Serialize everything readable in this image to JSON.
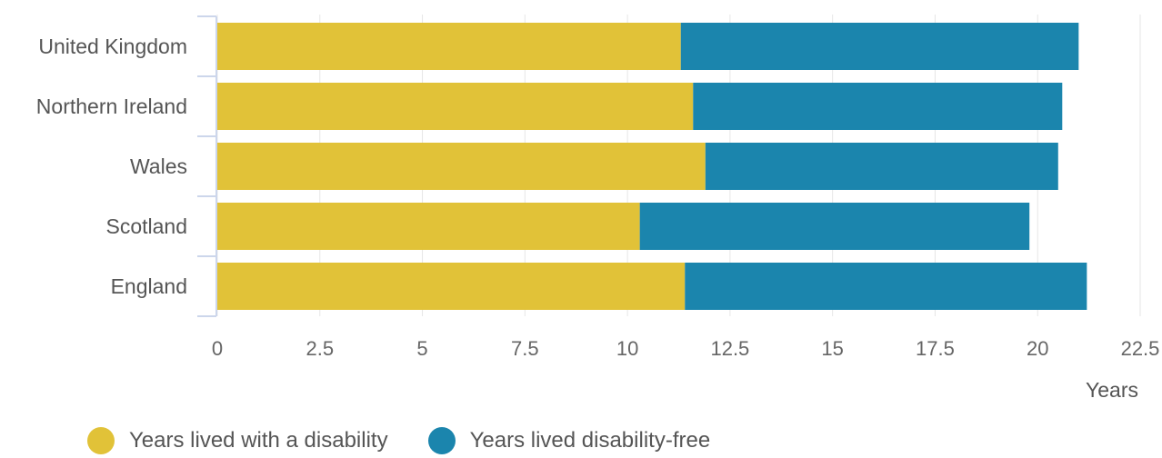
{
  "chart_data": {
    "type": "bar",
    "orientation": "horizontal",
    "stacked": true,
    "categories": [
      "United Kingdom",
      "Northern Ireland",
      "Wales",
      "Scotland",
      "England"
    ],
    "series": [
      {
        "name": "Years lived with a disability",
        "color": "#e1c238",
        "values": [
          11.3,
          11.6,
          11.9,
          10.3,
          11.4
        ]
      },
      {
        "name": "Years lived disability-free",
        "color": "#1b85ad",
        "values": [
          9.7,
          9.0,
          8.6,
          9.5,
          9.8
        ]
      }
    ],
    "xlabel": "Years",
    "ylabel": "",
    "xlim": [
      0,
      22.5
    ],
    "x_ticks": [
      "0",
      "2.5",
      "5",
      "7.5",
      "10",
      "12.5",
      "15",
      "17.5",
      "20",
      "22.5"
    ],
    "grid": true,
    "legend_position": "bottom-left"
  }
}
